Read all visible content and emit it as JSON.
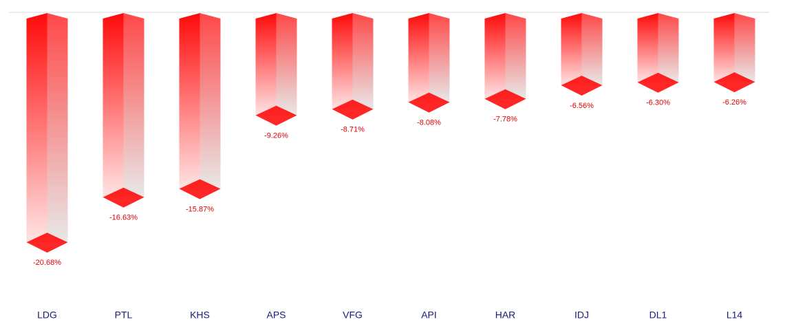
{
  "chart_data": {
    "type": "bar3d",
    "categories": [
      "LDG",
      "PTL",
      "KHS",
      "APS",
      "VFG",
      "API",
      "HAR",
      "IDJ",
      "DL1",
      "L14"
    ],
    "values": [
      -20.68,
      -16.63,
      -15.87,
      -9.26,
      -8.71,
      -8.08,
      -7.78,
      -6.56,
      -6.3,
      -6.26
    ],
    "value_labels": [
      "-20.68%",
      "-16.63%",
      "-15.87%",
      "-9.26%",
      "-8.71%",
      "-8.08%",
      "-7.78%",
      "-6.56%",
      "-6.30%",
      "-6.26%"
    ],
    "color": "#ff0000",
    "ylim": [
      -25,
      0
    ]
  }
}
